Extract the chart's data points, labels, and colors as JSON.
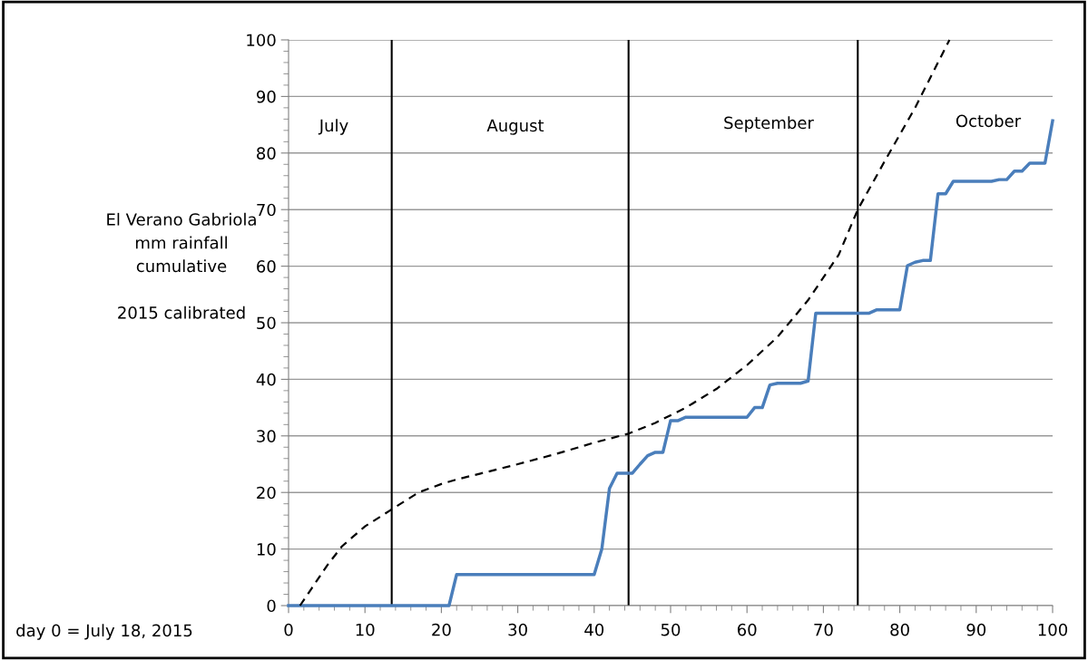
{
  "chart_data": {
    "type": "line",
    "ylabel": "El Verano Gabriola\nmm rainfall\ncumulative\n\n2015 calibrated",
    "xlim": [
      0,
      100
    ],
    "xticks": [
      0,
      10,
      20,
      30,
      40,
      50,
      60,
      70,
      80,
      90,
      100
    ],
    "ylim": [
      0,
      100
    ],
    "yticks": [
      0,
      10,
      20,
      30,
      40,
      50,
      60,
      70,
      80,
      90,
      100
    ],
    "grid": "y",
    "marker": "none",
    "series": [
      {
        "color": "#4a7ebb",
        "line_style": "solid",
        "x": [
          0,
          21,
          22,
          40,
          41,
          42,
          43,
          45,
          46,
          47,
          48,
          49,
          50,
          51,
          52,
          60,
          61,
          62,
          63,
          64,
          67,
          68,
          69,
          76,
          77,
          80,
          81,
          82,
          83,
          84,
          85,
          86,
          87,
          92,
          93,
          94,
          95,
          96,
          97,
          99,
          100
        ],
        "values": [
          0,
          0,
          5.5,
          5.5,
          10,
          20.7,
          23.4,
          23.4,
          25,
          26.5,
          27.1,
          27.1,
          32.7,
          32.7,
          33.3,
          33.3,
          35,
          35,
          39,
          39.3,
          39.3,
          39.7,
          51.7,
          51.7,
          52.3,
          52.3,
          60.1,
          60.7,
          61,
          61,
          72.8,
          72.8,
          75,
          75,
          75.3,
          75.3,
          76.8,
          76.8,
          78.2,
          78.2,
          85.7
        ]
      },
      {
        "color": "#000000",
        "line_style": "dashed",
        "x": [
          1.5,
          3,
          5,
          7,
          10,
          13.5,
          17,
          20,
          22,
          25,
          30,
          35,
          40,
          44.5,
          48,
          52,
          56,
          60,
          64,
          68,
          72,
          74.5,
          78,
          82,
          86.5
        ],
        "values": [
          0,
          3,
          7,
          10.5,
          14,
          17,
          20,
          21.5,
          22.3,
          23.3,
          25,
          26.8,
          28.8,
          30.4,
          32.3,
          35,
          38.3,
          42.5,
          47.5,
          54,
          62,
          70,
          78.5,
          88,
          100
        ]
      }
    ],
    "ref_lines": [
      {
        "axis": "x",
        "value": 13.5,
        "color": "#000000"
      },
      {
        "axis": "x",
        "value": 44.5,
        "color": "#000000"
      },
      {
        "axis": "x",
        "value": 74.5,
        "color": "#000000"
      }
    ],
    "annotations": [
      "July",
      "August",
      "September",
      "October",
      "day 0 = July 18, 2015"
    ]
  }
}
